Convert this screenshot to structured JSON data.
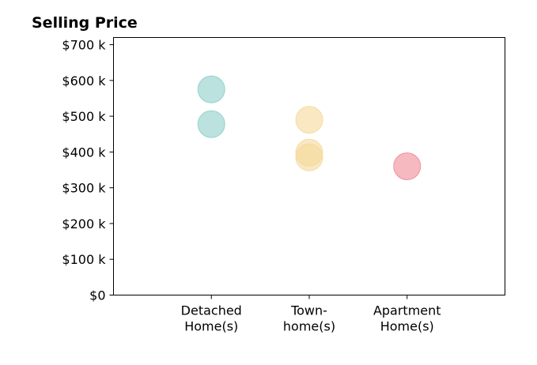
{
  "chart_data": {
    "type": "scatter",
    "title": "Selling Price",
    "xlabel": "",
    "ylabel": "",
    "categories": [
      [
        "Detached",
        "Home(s)"
      ],
      [
        "Town-",
        "home(s)"
      ],
      [
        "Apartment",
        "Home(s)"
      ]
    ],
    "xlim": [
      0,
      4
    ],
    "ylim": [
      0,
      720000
    ],
    "y_ticks": [
      0,
      100000,
      200000,
      300000,
      400000,
      500000,
      600000,
      700000
    ],
    "y_tick_labels": [
      "$0",
      "$100 k",
      "$200 k",
      "$300 k",
      "$400 k",
      "$500 k",
      "$600 k",
      "$700 k"
    ],
    "grid": false,
    "series": [
      {
        "color": "#8ecfc9",
        "points": [
          {
            "x": 1,
            "y": 575000
          },
          {
            "x": 1,
            "y": 478000
          }
        ]
      },
      {
        "color": "#f5d99a",
        "points": [
          {
            "x": 2,
            "y": 490000
          },
          {
            "x": 2,
            "y": 398000
          },
          {
            "x": 2,
            "y": 385000
          }
        ]
      },
      {
        "color": "#f08a96",
        "points": [
          {
            "x": 3,
            "y": 360000
          }
        ]
      }
    ]
  }
}
